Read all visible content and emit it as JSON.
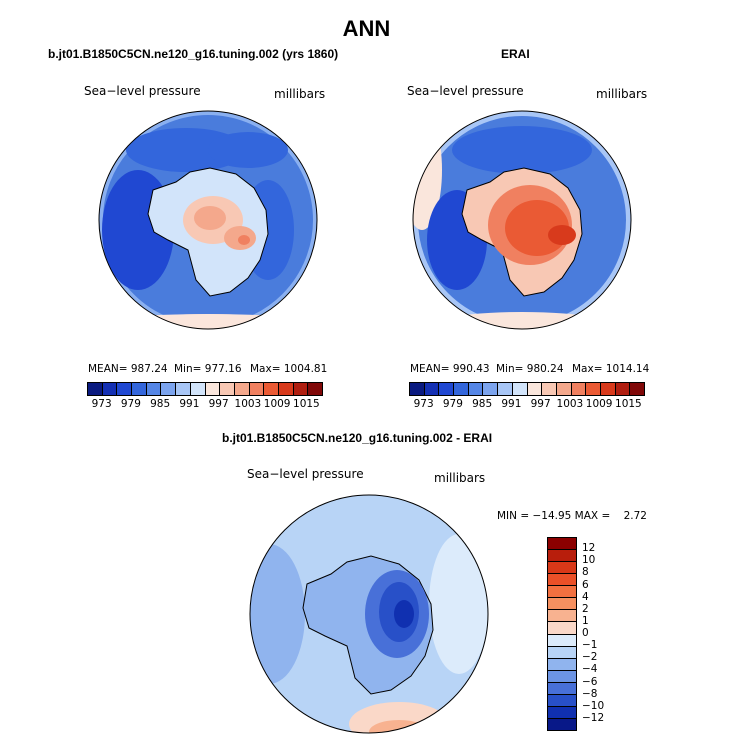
{
  "page": {
    "title": "ANN"
  },
  "chart_data": [
    {
      "type": "heatmap",
      "projection": "south polar stereographic",
      "title": "b.jt01.B1850C5CN.ne120_g16.tuning.002 (yrs 1860)",
      "left_label": "Sea−level pressure",
      "right_label": "millibars",
      "stats": {
        "mean": "MEAN= 987.24",
        "min": "Min= 977.16",
        "max": "Max= 1004.81"
      },
      "colorbar_levels": [
        973,
        979,
        985,
        991,
        997,
        1003,
        1009,
        1015
      ],
      "colorbar_tick_labels": [
        "973",
        "979",
        "985",
        "991",
        "997",
        "1003",
        "1009",
        "1015"
      ],
      "colorbar_colors": [
        "#0a1a80",
        "#1430b4",
        "#2048d2",
        "#3366dc",
        "#5586e6",
        "#7ca4ee",
        "#a8c6f6",
        "#d2e4fa",
        "#fae6dc",
        "#f8c8b4",
        "#f4a88c",
        "#f08060",
        "#ea5a34",
        "#d83a1c",
        "#b01e10",
        "#800808"
      ]
    },
    {
      "type": "heatmap",
      "projection": "south polar stereographic",
      "title": "ERAI",
      "left_label": "Sea−level pressure",
      "right_label": "millibars",
      "stats": {
        "mean": "MEAN= 990.43",
        "min": "Min= 980.24",
        "max": "Max= 1014.14"
      },
      "colorbar_levels": [
        973,
        979,
        985,
        991,
        997,
        1003,
        1009,
        1015
      ],
      "colorbar_tick_labels": [
        "973",
        "979",
        "985",
        "991",
        "997",
        "1003",
        "1009",
        "1015"
      ],
      "colorbar_colors": [
        "#0a1a80",
        "#1430b4",
        "#2048d2",
        "#3366dc",
        "#5586e6",
        "#7ca4ee",
        "#a8c6f6",
        "#d2e4fa",
        "#fae6dc",
        "#f8c8b4",
        "#f4a88c",
        "#f08060",
        "#ea5a34",
        "#d83a1c",
        "#b01e10",
        "#800808"
      ]
    },
    {
      "type": "heatmap",
      "projection": "south polar stereographic",
      "title": "b.jt01.B1850C5CN.ne120_g16.tuning.002 - ERAI",
      "left_label": "Sea−level pressure",
      "right_label": "millibars",
      "stats": {
        "minmax": "MIN = −14.95 MAX =    2.72"
      },
      "colorbar_levels": [
        12,
        10,
        8,
        6,
        4,
        2,
        1,
        0,
        -1,
        -2,
        -4,
        -6,
        -8,
        -10,
        -12
      ],
      "colorbar_tick_labels": [
        "12",
        "10",
        "8",
        "6",
        "4",
        "2",
        "1",
        "0",
        "−1",
        "−2",
        "−4",
        "−6",
        "−8",
        "−10",
        "−12"
      ],
      "colorbar_colors": [
        "#8b0000",
        "#b81e0c",
        "#d83818",
        "#ea5028",
        "#f27040",
        "#f69060",
        "#f8b290",
        "#fad8c8",
        "#dcebfb",
        "#b8d4f6",
        "#90b4ee",
        "#6c94e4",
        "#4870d8",
        "#2850c8",
        "#1030b0",
        "#081888"
      ]
    }
  ]
}
